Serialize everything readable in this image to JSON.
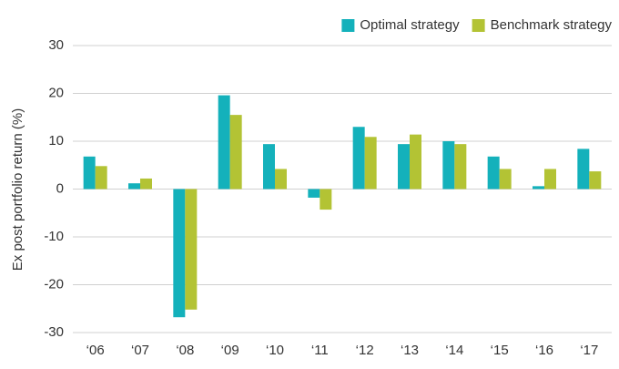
{
  "chart_data": {
    "type": "bar",
    "y_label": "Ex post portfolio return (%)",
    "categories": [
      "‘06",
      "‘07",
      "‘08",
      "‘09",
      "‘10",
      "‘11",
      "‘12",
      "‘13",
      "‘14",
      "‘15",
      "‘16",
      "‘17"
    ],
    "series": [
      {
        "name": "Optimal strategy",
        "color": "#14b1bb",
        "values": [
          6.8,
          1.2,
          -26.8,
          19.6,
          9.4,
          -1.8,
          13,
          9.4,
          10,
          6.8,
          0.6,
          8.4
        ]
      },
      {
        "name": "Benchmark strategy",
        "color": "#b3c334",
        "values": [
          4.8,
          2.2,
          -25.2,
          15.5,
          4.2,
          -4.3,
          10.9,
          11.4,
          9.4,
          4.2,
          4.2,
          3.7
        ]
      }
    ],
    "ylim": [
      -30,
      30
    ],
    "yticks": [
      -30,
      -20,
      -10,
      0,
      10,
      20,
      30
    ],
    "grid": true,
    "legend": "top-right"
  }
}
